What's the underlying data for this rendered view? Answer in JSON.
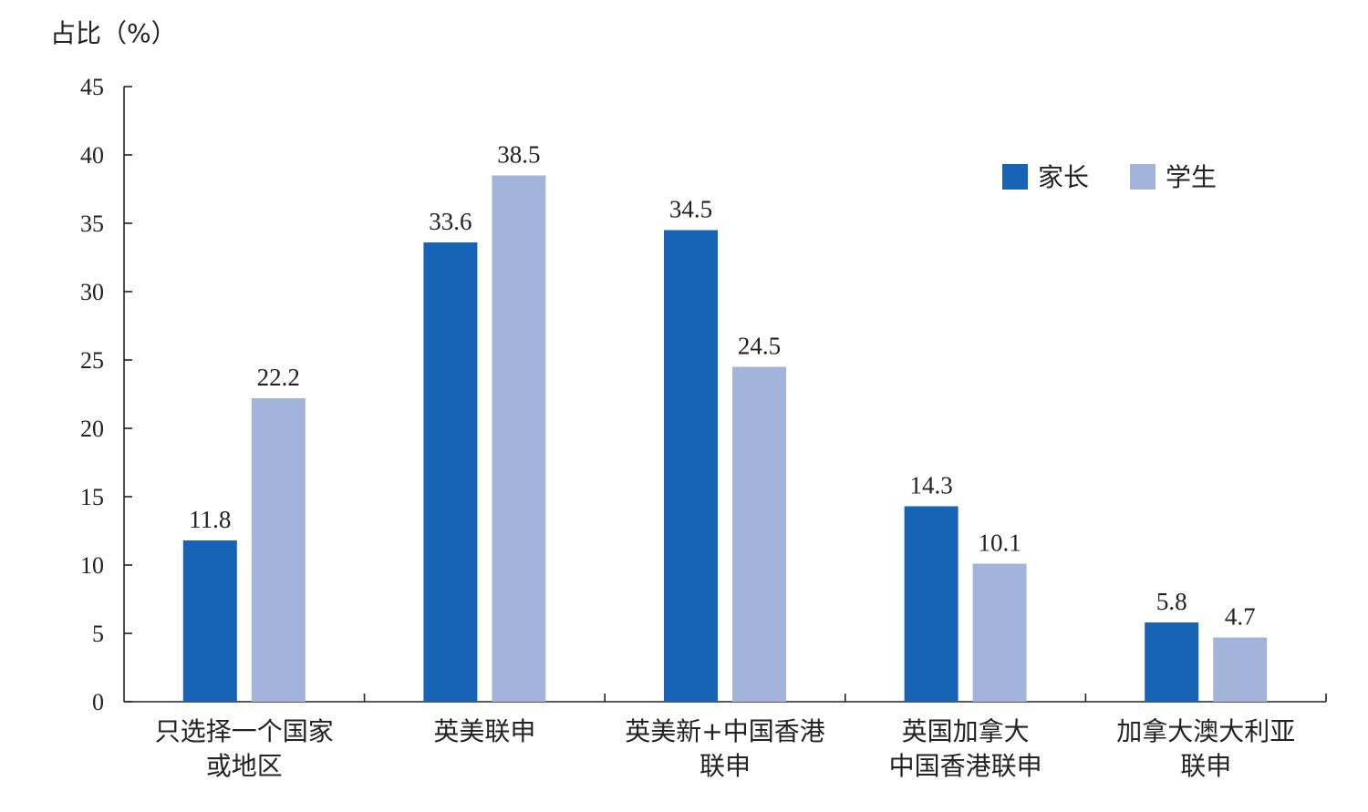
{
  "chart_data": {
    "type": "bar",
    "title": "",
    "ylabel": "占比（%）",
    "xlabel": "",
    "ylim": [
      0,
      45
    ],
    "yticks": [
      0,
      5,
      10,
      15,
      20,
      25,
      30,
      35,
      40,
      45
    ],
    "categories": [
      [
        "只选择一个国家",
        "或地区"
      ],
      [
        "英美联申"
      ],
      [
        "英美新+中国香港",
        "联申"
      ],
      [
        "英国加拿大",
        "中国香港联申"
      ],
      [
        "加拿大澳大利亚",
        "联申"
      ]
    ],
    "series": [
      {
        "name": "家长",
        "color": "#1763b5",
        "values": [
          11.8,
          33.6,
          34.5,
          14.3,
          5.8
        ],
        "labels": [
          "11.8",
          "33.6",
          "34.5",
          "14.3",
          "5.8"
        ]
      },
      {
        "name": "学生",
        "color": "#a3b4db",
        "values": [
          22.2,
          38.5,
          24.5,
          10.1,
          4.7
        ],
        "labels": [
          "22.2",
          "38.5",
          "24.5",
          "10.1",
          "4.7"
        ]
      }
    ],
    "legend_position": "top-right",
    "grid": false
  }
}
